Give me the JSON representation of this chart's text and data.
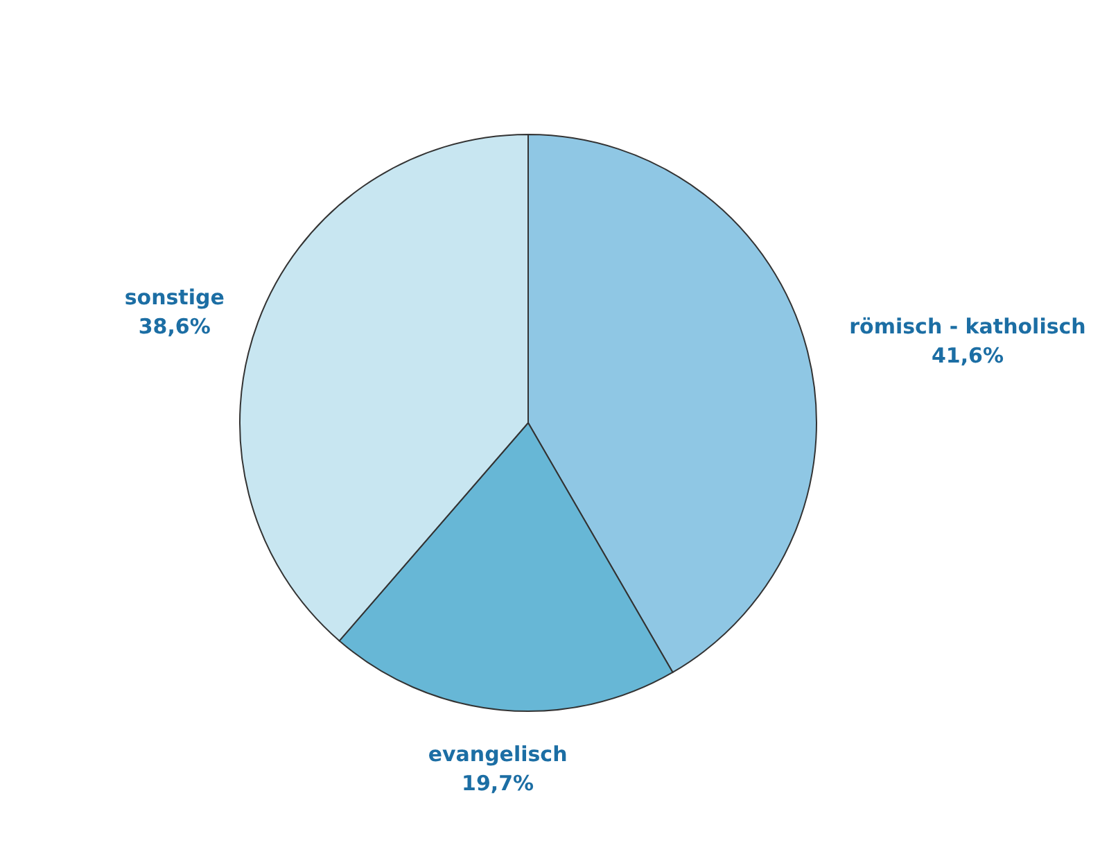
{
  "chart_data": {
    "type": "pie",
    "categories": [
      "römisch - katholisch",
      "evangelisch",
      "sonstige"
    ],
    "values": [
      41.6,
      19.7,
      38.6
    ],
    "value_labels": [
      "41,6%",
      "19,7%",
      "38,6%"
    ],
    "colors": [
      "#8fc7e4",
      "#67b7d6",
      "#c8e6f1"
    ],
    "legend": false
  }
}
